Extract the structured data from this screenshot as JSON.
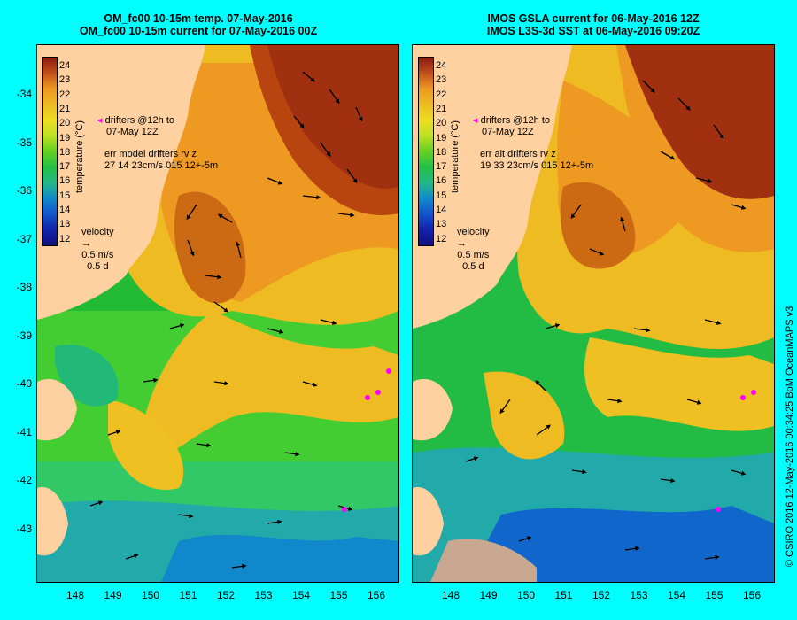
{
  "left": {
    "title1": "OM_fc00 10-15m temp. 07-May-2016",
    "title2": "OM_fc00 10-15m current for 07-May-2016 00Z",
    "drifters1": "drifters @12h to",
    "drifters2": "07-May 12Z",
    "err1": "err model drifters rv z",
    "err2": "27 14 23cm/s 015 12+-5m"
  },
  "right": {
    "title1": "IMOS GSLA current for 06-May-2016 12Z",
    "title2": "IMOS L3S-3d SST at 06-May-2016 09:20Z",
    "drifters1": "drifters @12h to",
    "drifters2": "07-May 12Z",
    "err1": "err alt drifters rv z",
    "err2": "19 33 23cm/s 015 12+-5m"
  },
  "colorbar": {
    "label": "temperature (°C)",
    "ticks": [
      "24",
      "23",
      "22",
      "21",
      "20",
      "19",
      "18",
      "17",
      "16",
      "15",
      "14",
      "13",
      "12"
    ]
  },
  "velocity": {
    "label": "velocity",
    "speed": "0.5 m/s",
    "time": "0.5 d"
  },
  "lat_ticks": [
    "-34",
    "-35",
    "-36",
    "-37",
    "-38",
    "-39",
    "-40",
    "-41",
    "-42",
    "-43"
  ],
  "lon_ticks": [
    "148",
    "149",
    "150",
    "151",
    "152",
    "153",
    "154",
    "155",
    "156"
  ],
  "copyright": "© CSIRO 2016  12-May-2016 00:34:25 BoM OceanMAPS v3",
  "colors": {
    "background": "#00ffff",
    "land": "#ffd0a0",
    "drifter": "#ff00ff"
  }
}
